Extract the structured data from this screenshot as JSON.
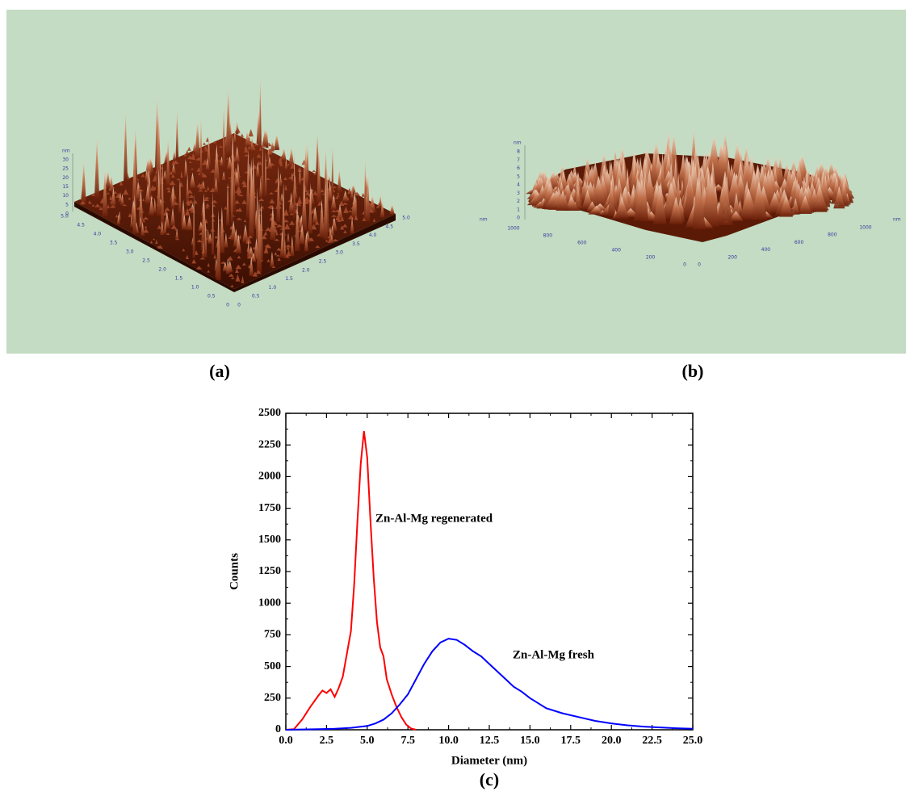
{
  "panel_a": {
    "label": "(a)",
    "z_unit": "nm",
    "z_ticks": [
      "30",
      "25",
      "20",
      "15",
      "10",
      "5",
      "0"
    ],
    "y_ticks": [
      "5.0",
      "4.5",
      "4.0",
      "3.5",
      "3.0",
      "2.5",
      "2.0",
      "1.5",
      "1.0",
      "0.5",
      "0"
    ],
    "x_ticks": [
      "0",
      "0.5",
      "1.0",
      "1.5",
      "2.0",
      "2.5",
      "3.0",
      "3.5",
      "4.0",
      "4.5",
      "5.0"
    ]
  },
  "panel_b": {
    "label": "(b)",
    "z_unit": "nm",
    "z_ticks": [
      "8",
      "7",
      "6",
      "5",
      "4",
      "3",
      "2",
      "1",
      "0"
    ],
    "y_unit": "nm",
    "y_ticks": [
      "1000",
      "800",
      "600",
      "400",
      "200",
      "0"
    ],
    "x_ticks": [
      "0",
      "200",
      "400",
      "600",
      "800",
      "1000"
    ],
    "x_unit": "nm"
  },
  "chart_data": {
    "type": "line",
    "title": "(c)",
    "x_label": "Diameter (nm)",
    "y_label": "Counts",
    "xlim": [
      0,
      25
    ],
    "ylim": [
      0,
      2500
    ],
    "xticks": [
      {
        "value": 0,
        "label": "0.0"
      },
      2.5,
      {
        "value": 5,
        "label": "5.0"
      },
      7.5,
      {
        "value": 10,
        "label": "10.0"
      },
      12.5,
      {
        "value": 15,
        "label": "15.0"
      },
      17.5,
      {
        "value": 20,
        "label": "20.0"
      },
      22.5,
      {
        "value": 25,
        "label": "25.0"
      }
    ],
    "yticks": [
      0,
      250,
      500,
      750,
      1000,
      1250,
      1500,
      1750,
      2000,
      2250,
      2500
    ],
    "series": [
      {
        "name": "Zn-Al-Mg regenerated",
        "color": "#ff0000",
        "x": [
          0,
          0.5,
          1,
          1.5,
          2,
          2.25,
          2.5,
          2.75,
          3,
          3.25,
          3.5,
          3.75,
          4,
          4.2,
          4.4,
          4.6,
          4.8,
          5,
          5.2,
          5.4,
          5.6,
          5.8,
          6,
          6.2,
          6.5,
          6.8,
          7.1,
          7.4,
          7.7,
          8
        ],
        "values": [
          0,
          5,
          80,
          180,
          270,
          310,
          290,
          320,
          260,
          330,
          420,
          600,
          780,
          1150,
          1650,
          2100,
          2360,
          2150,
          1650,
          1200,
          850,
          650,
          580,
          400,
          280,
          180,
          100,
          40,
          10,
          0
        ]
      },
      {
        "name": "Zn-Al-Mg fresh",
        "color": "#0000ff",
        "x": [
          0,
          1,
          2,
          3,
          4,
          5,
          5.5,
          6,
          6.5,
          7,
          7.5,
          8,
          8.5,
          9,
          9.5,
          10,
          10.5,
          11,
          11.5,
          12,
          12.5,
          13,
          13.5,
          14,
          14.5,
          15,
          15.5,
          16,
          17,
          18,
          19,
          20,
          21,
          22,
          23,
          24,
          25
        ],
        "values": [
          0,
          2,
          5,
          8,
          15,
          30,
          50,
          80,
          130,
          200,
          280,
          400,
          520,
          620,
          690,
          720,
          710,
          670,
          620,
          580,
          520,
          460,
          400,
          340,
          300,
          250,
          210,
          170,
          130,
          100,
          70,
          50,
          35,
          25,
          18,
          12,
          8
        ]
      }
    ]
  }
}
